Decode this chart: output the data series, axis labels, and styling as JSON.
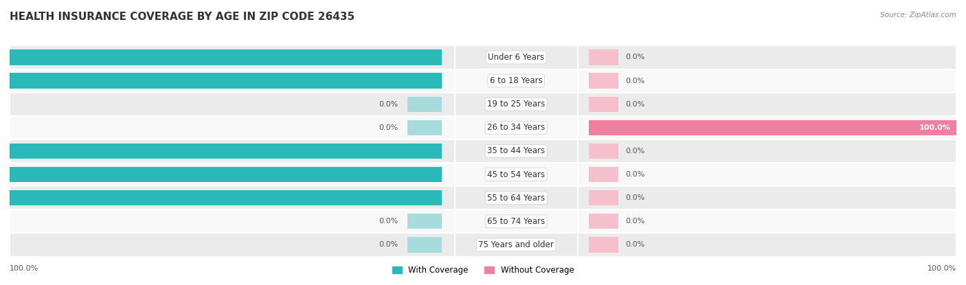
{
  "title": "HEALTH INSURANCE COVERAGE BY AGE IN ZIP CODE 26435",
  "source": "Source: ZipAtlas.com",
  "categories": [
    "Under 6 Years",
    "6 to 18 Years",
    "19 to 25 Years",
    "26 to 34 Years",
    "35 to 44 Years",
    "45 to 54 Years",
    "55 to 64 Years",
    "65 to 74 Years",
    "75 Years and older"
  ],
  "with_coverage": [
    100.0,
    100.0,
    0.0,
    0.0,
    100.0,
    100.0,
    100.0,
    0.0,
    0.0
  ],
  "without_coverage": [
    0.0,
    0.0,
    0.0,
    100.0,
    0.0,
    0.0,
    0.0,
    0.0,
    0.0
  ],
  "color_with": "#2ab8b8",
  "color_without": "#f080a0",
  "color_with_light": "#a8dcdc",
  "color_without_light": "#f5c0cc",
  "row_bg_dark": "#ebebeb",
  "row_bg_light": "#f8f8f8",
  "title_fontsize": 11,
  "cat_fontsize": 8.5,
  "val_fontsize": 8,
  "legend_with": "With Coverage",
  "legend_without": "Without Coverage",
  "stub_size": 8.0
}
